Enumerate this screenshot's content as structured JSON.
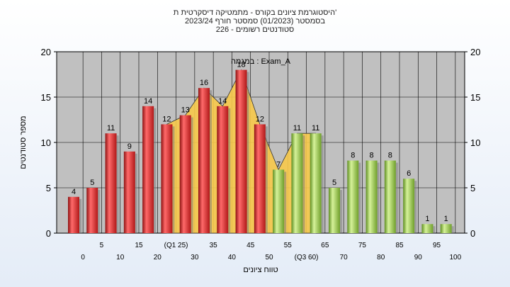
{
  "header": {
    "title_line1": "היסטוגרמת ציונים בקורס - מתמטיקה דיסקרטית ת'",
    "title_line2": "בסמסטר  (01/2023)  סמסטר חורף  2023/24",
    "title_line3": "סטודנטים רשומים - 226"
  },
  "chart_data": {
    "type": "bar",
    "title": "היסטוגרמת ציונים בקורס - מתמטיקה דיסקרטית ת'",
    "ylabel": "מספר סטודנטים",
    "xlabel": "טווח ציונים",
    "ylim": [
      0,
      20
    ],
    "yticks": [
      "0",
      "5",
      "10",
      "15",
      "20"
    ],
    "legend_label": "במגמה : Exam_A",
    "categories": [
      "0",
      "5",
      "10",
      "15",
      "20",
      "25",
      "30",
      "35",
      "40",
      "45",
      "50",
      "55",
      "60",
      "65",
      "70",
      "75",
      "80",
      "85",
      "90",
      "95",
      "100"
    ],
    "x_tick_labels": [
      "0",
      "5",
      "10",
      "15",
      "20",
      "(Q1 25)",
      "30",
      "35",
      "40",
      "45",
      "50",
      "55",
      "(Q3 60)",
      "65",
      "70",
      "75",
      "80",
      "85",
      "90",
      "95",
      "100"
    ],
    "values": [
      4,
      5,
      11,
      9,
      14,
      12,
      13,
      16,
      14,
      18,
      12,
      7,
      11,
      11,
      5,
      8,
      8,
      8,
      6,
      1,
      1
    ],
    "bar_color_groups": [
      "red",
      "red",
      "red",
      "red",
      "red",
      "red",
      "red",
      "red",
      "red",
      "red",
      "red",
      "green",
      "green",
      "green",
      "green",
      "green",
      "green",
      "green",
      "green",
      "green",
      "green"
    ],
    "area_values": [
      12,
      13,
      16,
      14,
      18,
      12,
      7,
      11,
      11
    ],
    "area_start_index": 5,
    "colors": {
      "red": "#d42a2a",
      "green": "#8fc24a",
      "area": "#f7c94a",
      "plot_bg": "#c0c0c0"
    },
    "grid": true
  }
}
